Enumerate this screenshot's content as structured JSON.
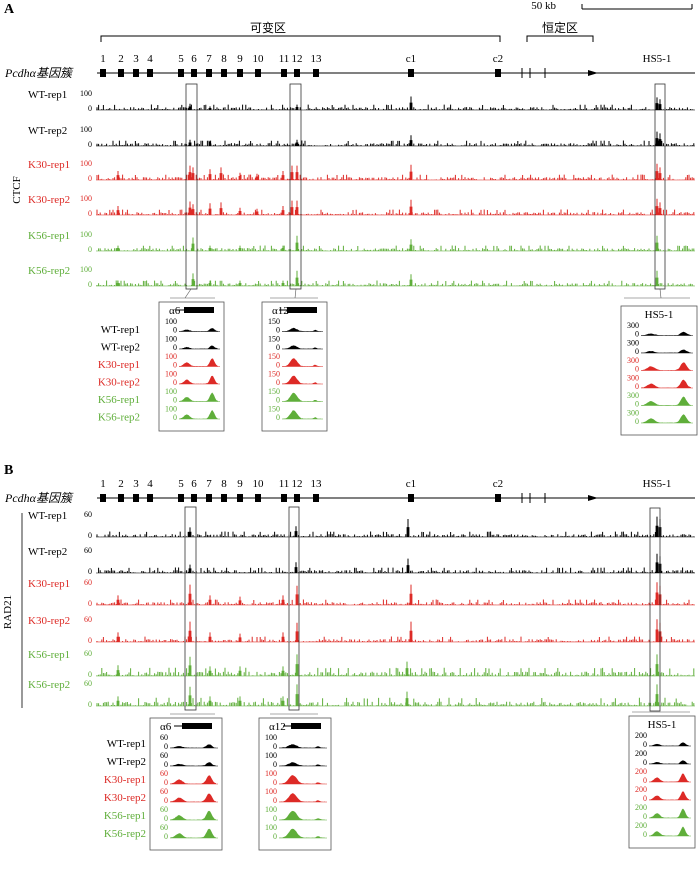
{
  "panels": [
    {
      "letter": "A",
      "track_group_label": "CTCF",
      "scale_label": "50 kb",
      "region_variable_label": "可变区",
      "region_constant_label": "恒定区",
      "gene_cluster_label": "Pcdhα基因簇",
      "exon_labels": [
        "1",
        "2",
        "3",
        "4",
        "5",
        "6",
        "7",
        "8",
        "9",
        "10",
        "11",
        "12",
        "13",
        "c1",
        "c2",
        "HS5-1"
      ],
      "tracks": [
        {
          "label": "WT-rep1",
          "ymax": "100",
          "color": "#000000"
        },
        {
          "label": "WT-rep2",
          "ymax": "100",
          "color": "#000000"
        },
        {
          "label": "K30-rep1",
          "ymax": "100",
          "color": "#dd2a26"
        },
        {
          "label": "K30-rep2",
          "ymax": "100",
          "color": "#dd2a26"
        },
        {
          "label": "K56-rep1",
          "ymax": "100",
          "color": "#5fae3a"
        },
        {
          "label": "K56-rep2",
          "ymax": "100",
          "color": "#5fae3a"
        }
      ],
      "zooms": [
        {
          "title": "α6",
          "ymax": [
            "100",
            "100",
            "100",
            "100",
            "100",
            "100"
          ]
        },
        {
          "title": "α12",
          "ymax": [
            "150",
            "150",
            "150",
            "150",
            "150",
            "150"
          ]
        },
        {
          "title": "HS5-1",
          "ymax": [
            "300",
            "300",
            "300",
            "300",
            "300",
            "300"
          ]
        }
      ]
    },
    {
      "letter": "B",
      "track_group_label": "RAD21",
      "gene_cluster_label": "Pcdhα基因簇",
      "exon_labels": [
        "1",
        "2",
        "3",
        "4",
        "5",
        "6",
        "7",
        "8",
        "9",
        "10",
        "11",
        "12",
        "13",
        "c1",
        "c2",
        "HS5-1"
      ],
      "tracks": [
        {
          "label": "WT-rep1",
          "ymax": "60",
          "color": "#000000"
        },
        {
          "label": "WT-rep2",
          "ymax": "60",
          "color": "#000000"
        },
        {
          "label": "K30-rep1",
          "ymax": "60",
          "color": "#dd2a26"
        },
        {
          "label": "K30-rep2",
          "ymax": "60",
          "color": "#dd2a26"
        },
        {
          "label": "K56-rep1",
          "ymax": "60",
          "color": "#5fae3a"
        },
        {
          "label": "K56-rep2",
          "ymax": "60",
          "color": "#5fae3a"
        }
      ],
      "zooms": [
        {
          "title": "α6",
          "ymax": [
            "60",
            "60",
            "60",
            "60",
            "60",
            "60"
          ]
        },
        {
          "title": "α12",
          "ymax": [
            "100",
            "100",
            "100",
            "100",
            "100",
            "100"
          ]
        },
        {
          "title": "HS5-1",
          "ymax": [
            "200",
            "200",
            "200",
            "200",
            "200",
            "200"
          ]
        }
      ]
    }
  ],
  "zero_label": "0",
  "colors": {
    "wt": "#000000",
    "k30": "#dd2a26",
    "k56": "#5fae3a"
  }
}
